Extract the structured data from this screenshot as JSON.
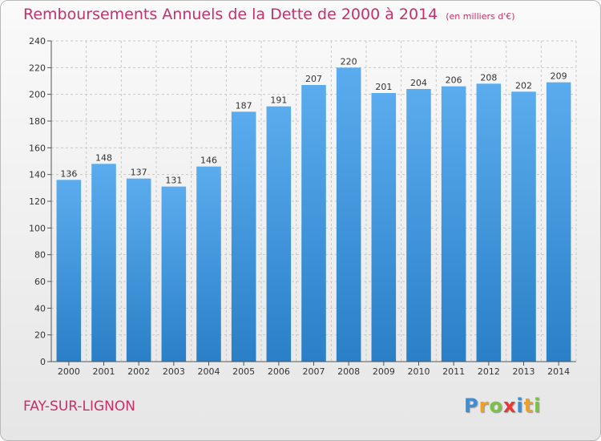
{
  "header": {
    "title": "Remboursements Annuels de la Dette de 2000 à 2014",
    "unit": "(en milliers d'€)"
  },
  "footer": {
    "city": "FAY-SUR-LIGNON",
    "logo_text": "Proxiti",
    "logo_letters": [
      {
        "char": "P",
        "color": "#3a8fd8"
      },
      {
        "char": "r",
        "color": "#f0a020"
      },
      {
        "char": "o",
        "color": "#7cc242"
      },
      {
        "char": "x",
        "color": "#e53935"
      },
      {
        "char": "i",
        "color": "#3a8fd8"
      },
      {
        "char": "t",
        "color": "#f0a020"
      },
      {
        "char": "i",
        "color": "#7cc242"
      }
    ]
  },
  "colors": {
    "title": "#c8306c",
    "bar_top": "#5aacee",
    "bar_bottom": "#2a7fc6",
    "grid": "#c8c8c8",
    "axis": "#555555"
  },
  "chart_data": {
    "type": "bar",
    "title": "Remboursements Annuels de la Dette de 2000 à 2014",
    "xlabel": "",
    "ylabel": "",
    "grid": true,
    "ylim": [
      0,
      240
    ],
    "yticks": [
      0,
      20,
      40,
      60,
      80,
      100,
      120,
      140,
      160,
      180,
      200,
      220,
      240
    ],
    "categories": [
      "2000",
      "2001",
      "2002",
      "2003",
      "2004",
      "2005",
      "2006",
      "2007",
      "2008",
      "2009",
      "2010",
      "2011",
      "2012",
      "2013",
      "2014"
    ],
    "values": [
      136,
      148,
      137,
      131,
      146,
      187,
      191,
      207,
      220,
      201,
      204,
      206,
      208,
      202,
      209
    ]
  }
}
